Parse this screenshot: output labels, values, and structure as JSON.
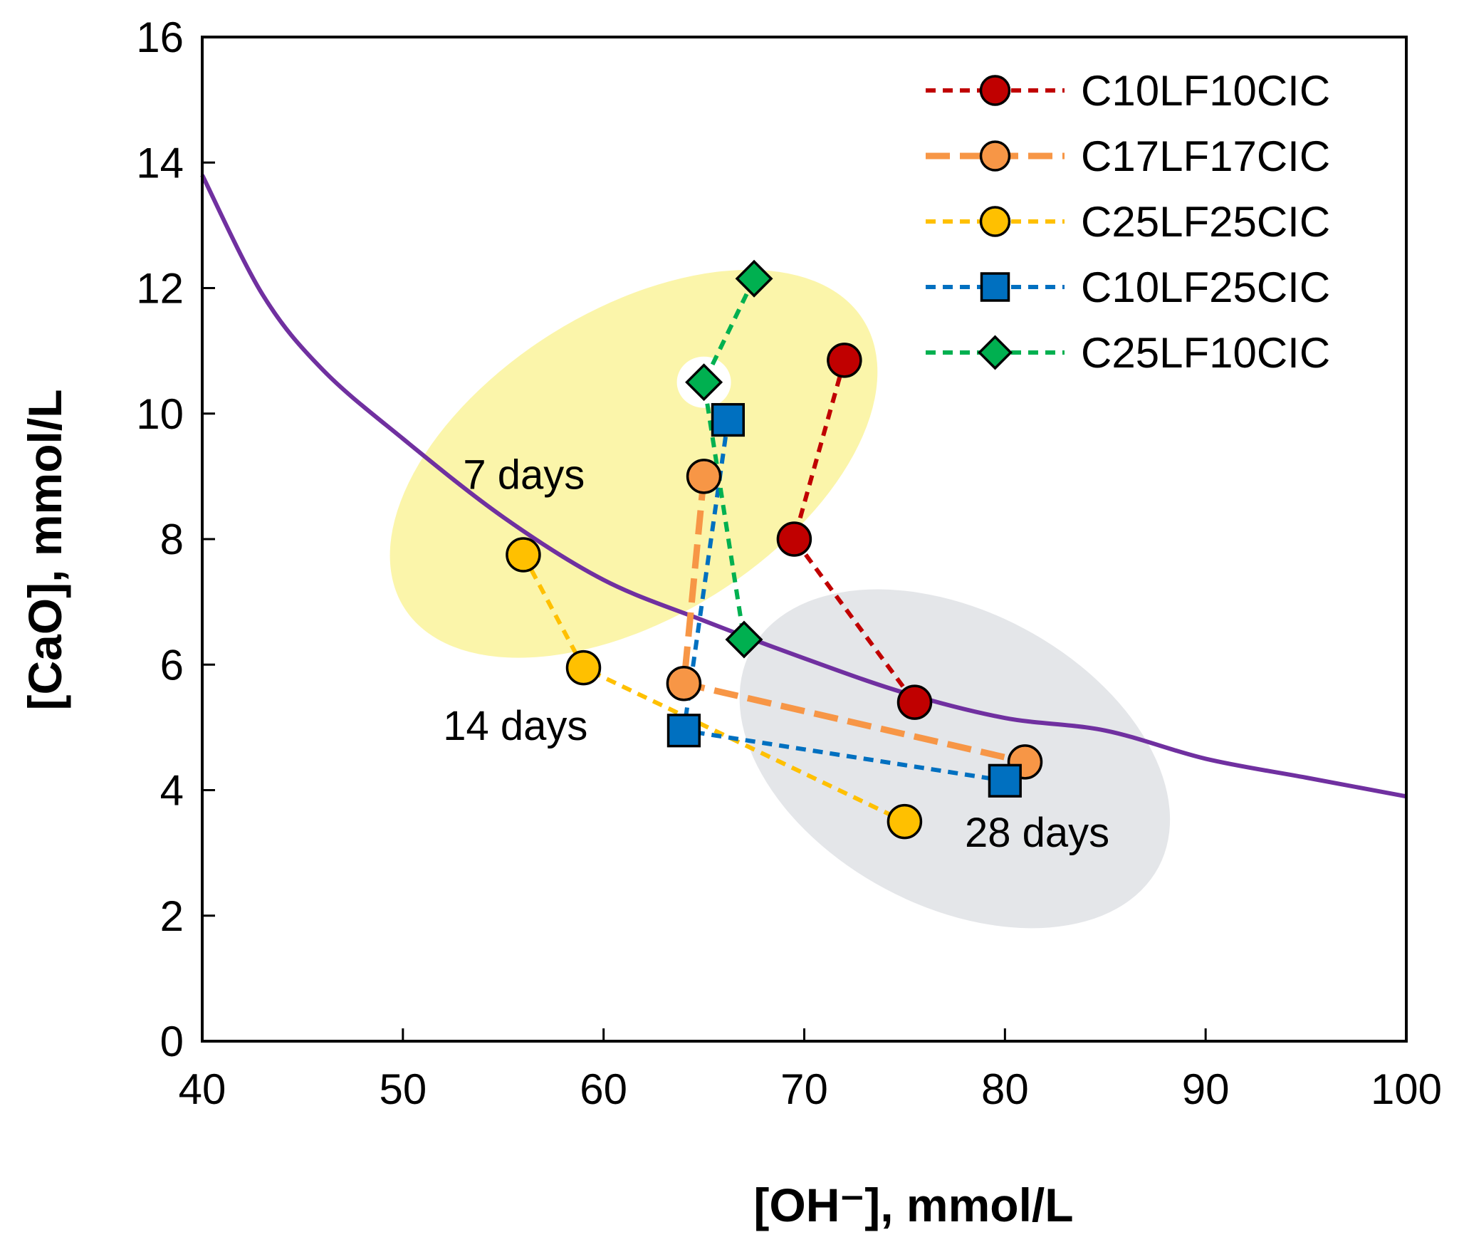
{
  "chart_data": {
    "type": "scatter",
    "xlabel": "[OH⁻], mmol/L",
    "ylabel": "[CaO], mmol/L",
    "xlim": [
      40,
      100
    ],
    "ylim": [
      0,
      16
    ],
    "xticks": [
      40,
      50,
      60,
      70,
      80,
      90,
      100
    ],
    "yticks": [
      0,
      2,
      4,
      6,
      8,
      10,
      12,
      14,
      16
    ],
    "grid": false,
    "legend_position": "top-right",
    "reference_curve": {
      "color": "#7030a0",
      "x": [
        40,
        43,
        46,
        50,
        55,
        60,
        65,
        70,
        75,
        80,
        85,
        90,
        95,
        100
      ],
      "y": [
        13.8,
        11.9,
        10.7,
        9.6,
        8.35,
        7.35,
        6.7,
        6.1,
        5.55,
        5.15,
        4.95,
        4.5,
        4.2,
        3.9
      ]
    },
    "series": [
      {
        "name": "C10LF10CIC",
        "color": "#c00000",
        "marker": "circle",
        "dash": "short",
        "x": [
          72,
          69.5,
          75.5
        ],
        "y": [
          10.85,
          8,
          5.4
        ]
      },
      {
        "name": "C17LF17CIC",
        "color": "#f79646",
        "marker": "circle",
        "dash": "long",
        "x": [
          65,
          64,
          81
        ],
        "y": [
          9,
          5.7,
          4.45
        ]
      },
      {
        "name": "C25LF25CIC",
        "color": "#ffc000",
        "marker": "circle",
        "dash": "short",
        "x": [
          56,
          59,
          75
        ],
        "y": [
          7.75,
          5.95,
          3.5
        ]
      },
      {
        "name": "C10LF25CIC",
        "color": "#0070c0",
        "marker": "square",
        "dash": "short",
        "x": [
          66.2,
          64,
          80
        ],
        "y": [
          9.9,
          4.95,
          4.15
        ]
      },
      {
        "name": "C25LF10CIC",
        "color": "#00b050",
        "marker": "diamond",
        "dash": "short",
        "x": [
          67.5,
          65,
          67
        ],
        "y": [
          12.15,
          10.5,
          6.4
        ]
      }
    ],
    "annotations": [
      {
        "text": "7 days",
        "x": 53,
        "y": 8.8
      },
      {
        "text": "14 days",
        "x": 52,
        "y": 4.8
      },
      {
        "text": "28 days",
        "x": 78,
        "y": 3.1
      }
    ],
    "regions": [
      {
        "label": "7 days",
        "color": "#fbf5aa",
        "cx": 61.5,
        "cy": 9.2,
        "rx": 13.5,
        "ry": 2.45,
        "angle": -32
      },
      {
        "label": "28 days",
        "color": "#e4e6e9",
        "cx": 77.5,
        "cy": 4.5,
        "rx": 11.5,
        "ry": 2.35,
        "angle": 28
      }
    ]
  }
}
